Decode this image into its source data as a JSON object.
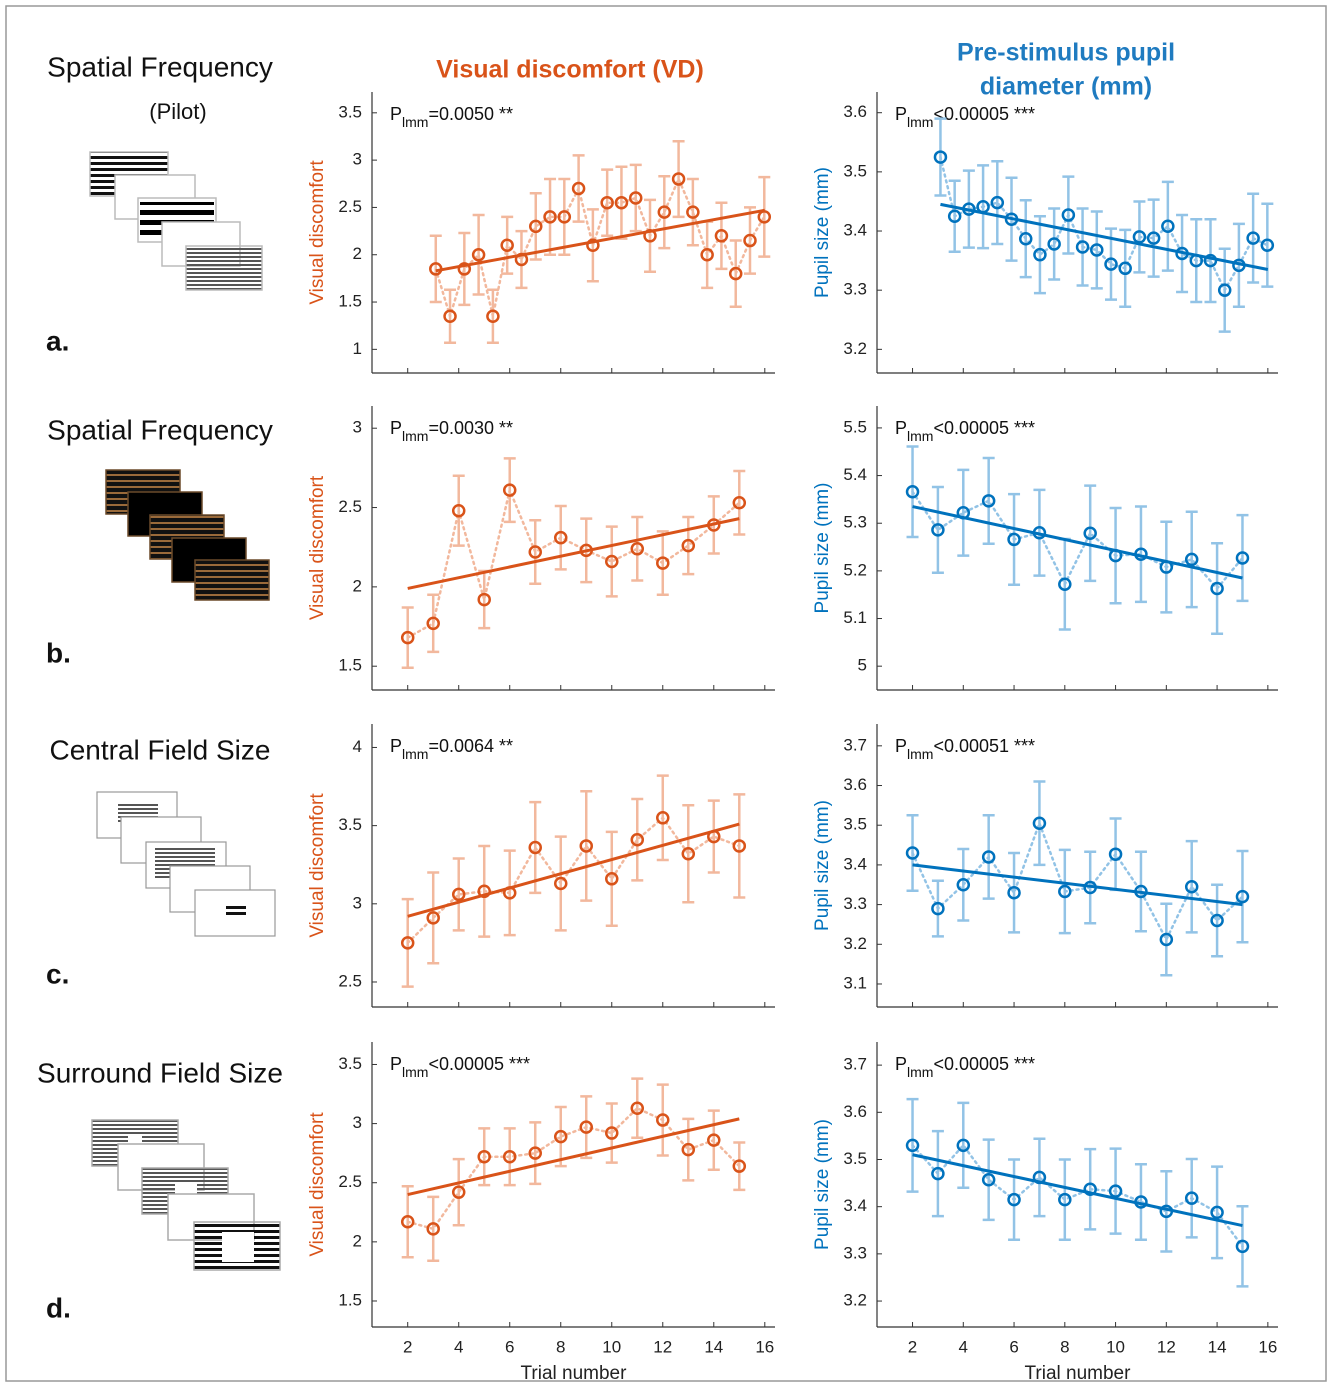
{
  "headers": {
    "vd": "Visual discomfort (VD)",
    "pupil": [
      "Pre-stimulus pupil",
      "diameter (mm)"
    ]
  },
  "panels": [
    {
      "title": "Spatial Frequency",
      "subtitle": "(Pilot)",
      "letter": "a."
    },
    {
      "title": "Spatial Frequency",
      "letter": "b."
    },
    {
      "title": "Central Field Size",
      "letter": "c."
    },
    {
      "title": "Surround Field Size",
      "letter": "d."
    }
  ],
  "chart_data": [
    {
      "type": "line",
      "ylabel": "Visual discomfort",
      "annotation": [
        "P",
        "lmm",
        "=0.0050 **"
      ],
      "color": "#d95319",
      "light_color": "#f2b89d",
      "xlim": [
        0.6,
        16.4
      ],
      "xticks": [
        2,
        4,
        6,
        8,
        10,
        12,
        14,
        16
      ],
      "xtick_labels": false,
      "ylim": [
        0.75,
        3.72
      ],
      "yticks": [
        1,
        1.5,
        2,
        2.5,
        3,
        3.5
      ],
      "x": [
        3.1,
        3.66,
        4.22,
        4.78,
        5.34,
        5.9,
        6.46,
        7.02,
        7.58,
        8.14,
        8.7,
        9.26,
        9.82,
        10.38,
        10.94,
        11.5,
        12.06,
        12.62,
        13.18,
        13.74,
        14.3,
        14.86,
        15.42,
        15.98
      ],
      "values": [
        1.85,
        1.35,
        1.85,
        2.0,
        1.35,
        2.1,
        1.95,
        2.3,
        2.4,
        2.4,
        2.7,
        2.1,
        2.55,
        2.55,
        2.6,
        2.2,
        2.45,
        2.8,
        2.45,
        2.0,
        2.2,
        1.8,
        2.15,
        2.4
      ],
      "errors": [
        0.35,
        0.28,
        0.38,
        0.42,
        0.28,
        0.3,
        0.3,
        0.35,
        0.4,
        0.4,
        0.35,
        0.38,
        0.35,
        0.38,
        0.35,
        0.38,
        0.38,
        0.4,
        0.35,
        0.35,
        0.35,
        0.35,
        0.35,
        0.42
      ],
      "fit": {
        "x": [
          3.1,
          16
        ],
        "values": [
          1.83,
          2.47
        ]
      }
    },
    {
      "type": "line",
      "ylabel": "Pupil size (mm)",
      "annotation": [
        "P",
        "lmm",
        "<0.00005 ***"
      ],
      "color": "#0072bd",
      "light_color": "#92c3e6",
      "xlim": [
        0.6,
        16.4
      ],
      "xticks": [
        2,
        4,
        6,
        8,
        10,
        12,
        14,
        16
      ],
      "xtick_labels": false,
      "ylim": [
        3.16,
        3.635
      ],
      "yticks": [
        3.2,
        3.3,
        3.4,
        3.5,
        3.6
      ],
      "x": [
        3.1,
        3.66,
        4.22,
        4.78,
        5.34,
        5.9,
        6.46,
        7.02,
        7.58,
        8.14,
        8.7,
        9.26,
        9.82,
        10.38,
        10.94,
        11.5,
        12.06,
        12.62,
        13.18,
        13.74,
        14.3,
        14.86,
        15.42,
        15.98
      ],
      "values": [
        3.525,
        3.425,
        3.437,
        3.441,
        3.448,
        3.42,
        3.387,
        3.36,
        3.378,
        3.427,
        3.373,
        3.368,
        3.344,
        3.337,
        3.39,
        3.388,
        3.408,
        3.362,
        3.35,
        3.35,
        3.3,
        3.342,
        3.388,
        3.376
      ],
      "errors": [
        0.065,
        0.06,
        0.065,
        0.07,
        0.07,
        0.07,
        0.065,
        0.065,
        0.06,
        0.065,
        0.065,
        0.065,
        0.06,
        0.065,
        0.06,
        0.065,
        0.075,
        0.065,
        0.07,
        0.07,
        0.07,
        0.07,
        0.075,
        0.07
      ],
      "fit": {
        "x": [
          3.1,
          16
        ],
        "values": [
          3.445,
          3.335
        ]
      }
    },
    {
      "type": "line",
      "ylabel": "Visual discomfort",
      "annotation": [
        "P",
        "lmm",
        "=0.0030 **"
      ],
      "color": "#d95319",
      "light_color": "#f2b89d",
      "xlim": [
        0.6,
        16.4
      ],
      "xticks": [
        2,
        4,
        6,
        8,
        10,
        12,
        14,
        16
      ],
      "xtick_labels": false,
      "ylim": [
        1.35,
        3.14
      ],
      "yticks": [
        1.5,
        2,
        2.5,
        3
      ],
      "x": [
        2,
        3,
        4,
        5,
        6,
        7,
        8,
        9,
        10,
        11,
        12,
        13,
        14,
        15
      ],
      "values": [
        1.68,
        1.77,
        2.48,
        1.92,
        2.61,
        2.22,
        2.31,
        2.23,
        2.16,
        2.24,
        2.15,
        2.26,
        2.39,
        2.53
      ],
      "errors": [
        0.19,
        0.18,
        0.22,
        0.18,
        0.2,
        0.2,
        0.2,
        0.2,
        0.22,
        0.2,
        0.2,
        0.18,
        0.18,
        0.2
      ],
      "fit": {
        "x": [
          2,
          15
        ],
        "values": [
          1.99,
          2.43
        ]
      }
    },
    {
      "type": "line",
      "ylabel": "Pupil size (mm)",
      "annotation": [
        "P",
        "lmm",
        "<0.00005 ***"
      ],
      "color": "#0072bd",
      "light_color": "#92c3e6",
      "xlim": [
        0.6,
        16.4
      ],
      "xticks": [
        2,
        4,
        6,
        8,
        10,
        12,
        14,
        16
      ],
      "xtick_labels": false,
      "ylim": [
        4.95,
        5.546
      ],
      "yticks": [
        5,
        5.1,
        5.2,
        5.3,
        5.4,
        5.5
      ],
      "x": [
        2,
        3,
        4,
        5,
        6,
        7,
        8,
        9,
        10,
        11,
        12,
        13,
        14,
        15
      ],
      "values": [
        5.366,
        5.286,
        5.322,
        5.347,
        5.266,
        5.28,
        5.172,
        5.279,
        5.232,
        5.235,
        5.208,
        5.224,
        5.163,
        5.227
      ],
      "errors": [
        0.095,
        0.09,
        0.09,
        0.09,
        0.095,
        0.09,
        0.095,
        0.1,
        0.1,
        0.1,
        0.095,
        0.1,
        0.095,
        0.09
      ],
      "fit": {
        "x": [
          2,
          15
        ],
        "values": [
          5.335,
          5.185
        ]
      }
    },
    {
      "type": "line",
      "ylabel": "Visual discomfort",
      "annotation": [
        "P",
        "lmm",
        "=0.0064 **"
      ],
      "color": "#d95319",
      "light_color": "#f2b89d",
      "xlim": [
        0.6,
        16.4
      ],
      "xticks": [
        2,
        4,
        6,
        8,
        10,
        12,
        14,
        16
      ],
      "xtick_labels": false,
      "ylim": [
        2.34,
        4.15
      ],
      "yticks": [
        2.5,
        3,
        3.5,
        4
      ],
      "x": [
        2,
        3,
        4,
        5,
        6,
        7,
        8,
        9,
        10,
        11,
        12,
        13,
        14,
        15
      ],
      "values": [
        2.75,
        2.91,
        3.06,
        3.08,
        3.07,
        3.36,
        3.13,
        3.37,
        3.16,
        3.41,
        3.55,
        3.32,
        3.43,
        3.37
      ],
      "errors": [
        0.28,
        0.29,
        0.23,
        0.29,
        0.27,
        0.29,
        0.3,
        0.35,
        0.3,
        0.26,
        0.27,
        0.31,
        0.23,
        0.33
      ],
      "fit": {
        "x": [
          2,
          15
        ],
        "values": [
          2.92,
          3.51
        ]
      }
    },
    {
      "type": "line",
      "ylabel": "Pupil size (mm)",
      "annotation": [
        "P",
        "lmm",
        "<0.00051 ***"
      ],
      "color": "#0072bd",
      "light_color": "#92c3e6",
      "xlim": [
        0.6,
        16.4
      ],
      "xticks": [
        2,
        4,
        6,
        8,
        10,
        12,
        14,
        16
      ],
      "xtick_labels": false,
      "ylim": [
        3.042,
        3.755
      ],
      "yticks": [
        3.1,
        3.2,
        3.3,
        3.4,
        3.5,
        3.6,
        3.7
      ],
      "x": [
        2,
        3,
        4,
        5,
        6,
        7,
        8,
        9,
        10,
        11,
        12,
        13,
        14,
        15
      ],
      "values": [
        3.43,
        3.29,
        3.35,
        3.42,
        3.33,
        3.505,
        3.333,
        3.343,
        3.427,
        3.333,
        3.212,
        3.345,
        3.26,
        3.32
      ],
      "errors": [
        0.095,
        0.07,
        0.09,
        0.105,
        0.1,
        0.105,
        0.105,
        0.09,
        0.09,
        0.1,
        0.09,
        0.115,
        0.09,
        0.115
      ],
      "fit": {
        "x": [
          2,
          15
        ],
        "values": [
          3.4,
          3.3
        ]
      }
    },
    {
      "type": "line",
      "ylabel": "Visual discomfort",
      "annotation": [
        "P",
        "lmm",
        "<0.00005 ***"
      ],
      "color": "#d95319",
      "light_color": "#f2b89d",
      "xlim": [
        0.6,
        16.4
      ],
      "xticks": [
        2,
        4,
        6,
        8,
        10,
        12,
        14,
        16
      ],
      "xtick_labels": true,
      "xlabel": "Trial number",
      "ylim": [
        1.28,
        3.69
      ],
      "yticks": [
        1.5,
        2,
        2.5,
        3,
        3.5
      ],
      "x": [
        2,
        3,
        4,
        5,
        6,
        7,
        8,
        9,
        10,
        11,
        12,
        13,
        14,
        15
      ],
      "values": [
        2.17,
        2.11,
        2.42,
        2.72,
        2.72,
        2.75,
        2.89,
        2.97,
        2.92,
        3.13,
        3.03,
        2.78,
        2.86,
        2.64
      ],
      "errors": [
        0.3,
        0.27,
        0.28,
        0.24,
        0.24,
        0.26,
        0.25,
        0.26,
        0.25,
        0.25,
        0.3,
        0.26,
        0.25,
        0.2
      ],
      "fit": {
        "x": [
          2,
          15
        ],
        "values": [
          2.4,
          3.04
        ]
      }
    },
    {
      "type": "line",
      "ylabel": "Pupil size (mm)",
      "annotation": [
        "P",
        "lmm",
        "<0.00005 ***"
      ],
      "color": "#0072bd",
      "light_color": "#92c3e6",
      "xlim": [
        0.6,
        16.4
      ],
      "xticks": [
        2,
        4,
        6,
        8,
        10,
        12,
        14,
        16
      ],
      "xtick_labels": true,
      "xlabel": "Trial number",
      "ylim": [
        3.145,
        3.749
      ],
      "yticks": [
        3.2,
        3.3,
        3.4,
        3.5,
        3.6,
        3.7
      ],
      "x": [
        2,
        3,
        4,
        5,
        6,
        7,
        8,
        9,
        10,
        11,
        12,
        13,
        14,
        15
      ],
      "values": [
        3.53,
        3.47,
        3.53,
        3.457,
        3.415,
        3.462,
        3.415,
        3.437,
        3.433,
        3.41,
        3.39,
        3.418,
        3.388,
        3.316
      ],
      "errors": [
        0.098,
        0.09,
        0.09,
        0.085,
        0.085,
        0.082,
        0.085,
        0.085,
        0.09,
        0.08,
        0.085,
        0.083,
        0.097,
        0.085
      ],
      "fit": {
        "x": [
          2,
          15
        ],
        "values": [
          3.51,
          3.36
        ]
      }
    }
  ]
}
